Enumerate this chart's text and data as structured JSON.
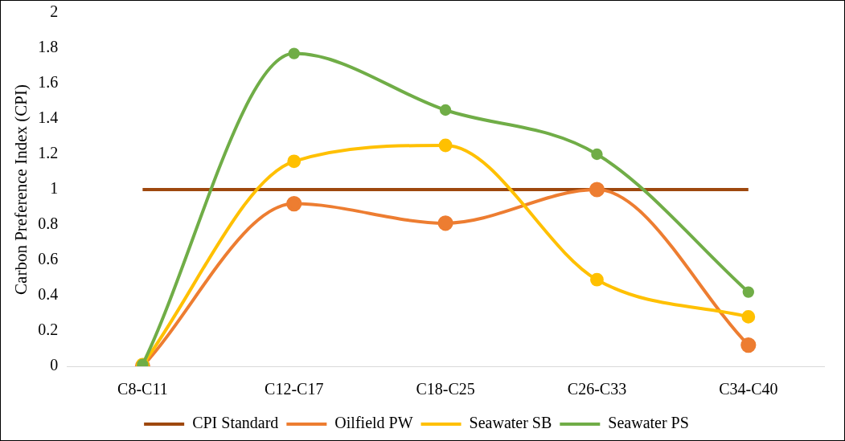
{
  "chart_data": {
    "type": "line",
    "ylabel": "Carbon Preference Index (CPI)",
    "categories": [
      "C8-C11",
      "C12-C17",
      "C18-C25",
      "C26-C33",
      "C34-C40"
    ],
    "ylim": [
      0,
      2
    ],
    "yticks": [
      0,
      0.2,
      0.4,
      0.6,
      0.8,
      1,
      1.2,
      1.4,
      1.6,
      1.8,
      2
    ],
    "grid": false,
    "legend": "bottom",
    "marker": "circle",
    "series": [
      {
        "name": "CPI Standard",
        "color": "#9e480e",
        "values": [
          1,
          1,
          1,
          1,
          1
        ],
        "marker": "none"
      },
      {
        "name": "Oilfield PW",
        "color": "#ed7d31",
        "values": [
          0,
          0.92,
          0.81,
          1.0,
          0.12
        ]
      },
      {
        "name": "Seawater SB",
        "color": "#ffc000",
        "values": [
          0.01,
          1.16,
          1.25,
          0.49,
          0.28
        ]
      },
      {
        "name": "Seawater PS",
        "color": "#70ad47",
        "values": [
          0.01,
          1.77,
          1.45,
          1.2,
          0.42
        ]
      }
    ]
  }
}
